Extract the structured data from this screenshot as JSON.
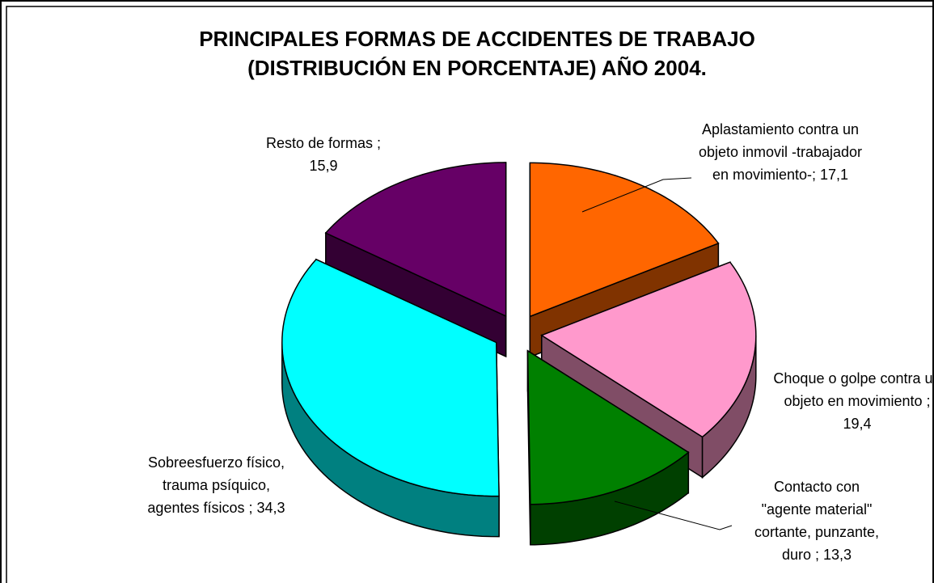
{
  "chart_data": {
    "type": "pie3d",
    "title": "PRINCIPALES FORMAS DE ACCIDENTES DE TRABAJO (DISTRIBUCIÓN EN PORCENTAJE) AÑO 2004.",
    "categories": [
      "Aplastamiento contra un objeto inmovil -trabajador en movimiento-;",
      "Choque o golpe contra un objeto en movimiento ;",
      "Contacto con \"agente material\" cortante, punzante, duro ;",
      "Sobreesfuerzo físico, trauma psíquico, agentes físicos ;",
      "Resto de formas ;"
    ],
    "values": [
      17.1,
      19.4,
      13.3,
      34.3,
      15.9
    ],
    "value_labels": [
      "17,1",
      "19,4",
      "13,3",
      "34,3",
      "15,9"
    ],
    "colors": [
      "#ff6600",
      "#ff99cc",
      "#008000",
      "#00ffff",
      "#660066"
    ]
  }
}
